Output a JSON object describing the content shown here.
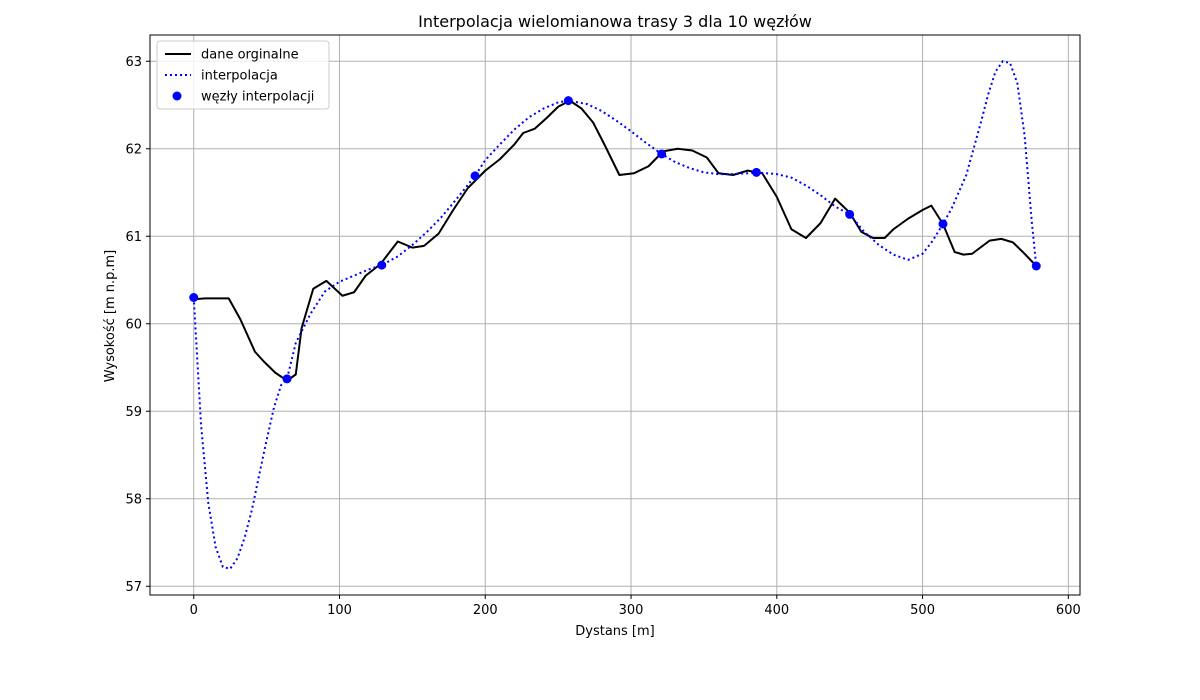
{
  "chart_data": {
    "type": "line",
    "title": "Interpolacja wielomianowa trasy 3 dla 10 węzłów",
    "xlabel": "Dystans [m]",
    "ylabel": "Wysokość [m n.p.m]",
    "xlim": [
      -30,
      608
    ],
    "ylim": [
      56.9,
      63.3
    ],
    "xticks": [
      0,
      100,
      200,
      300,
      400,
      500,
      600
    ],
    "yticks": [
      57,
      58,
      59,
      60,
      61,
      62,
      63
    ],
    "grid": true,
    "legend_position": "top-left",
    "legend": [
      "dane orginalne",
      "interpolacja",
      "węzły interpolacji"
    ],
    "colors": {
      "original": "#000000",
      "interpolation": "#0000ff",
      "nodes": "#0000ff",
      "grid": "#b0b0b0"
    },
    "series": [
      {
        "name": "dane orginalne",
        "style": "solid",
        "x": [
          0,
          8,
          16,
          24,
          32,
          42,
          48,
          56,
          64,
          70,
          74,
          82,
          91,
          102,
          110,
          118,
          128,
          140,
          150,
          158,
          168,
          178,
          188,
          200,
          210,
          220,
          226,
          234,
          242,
          250,
          258,
          266,
          274,
          282,
          292,
          302,
          312,
          322,
          332,
          342,
          352,
          360,
          370,
          380,
          390,
          400,
          410,
          420,
          430,
          440,
          450,
          458,
          466,
          474,
          480,
          490,
          500,
          506,
          514,
          522,
          528,
          534,
          538,
          546,
          554,
          562,
          570,
          578
        ],
        "y": [
          60.28,
          60.29,
          60.29,
          60.29,
          60.05,
          59.68,
          59.57,
          59.44,
          59.35,
          59.42,
          59.95,
          60.4,
          60.49,
          60.32,
          60.36,
          60.55,
          60.68,
          60.94,
          60.87,
          60.89,
          61.03,
          61.3,
          61.55,
          61.75,
          61.88,
          62.05,
          62.18,
          62.23,
          62.35,
          62.48,
          62.55,
          62.46,
          62.3,
          62.04,
          61.7,
          61.72,
          61.8,
          61.97,
          62.0,
          61.98,
          61.9,
          61.72,
          61.7,
          61.75,
          61.72,
          61.45,
          61.08,
          60.98,
          61.15,
          61.43,
          61.27,
          61.05,
          60.98,
          60.98,
          61.08,
          61.2,
          61.3,
          61.35,
          61.14,
          60.82,
          60.79,
          60.8,
          60.85,
          60.95,
          60.97,
          60.93,
          60.8,
          60.66
        ]
      },
      {
        "name": "interpolacja",
        "style": "dotted",
        "x": [
          0,
          5,
          10,
          15,
          20,
          25,
          30,
          35,
          40,
          45,
          50,
          55,
          60,
          64,
          70,
          80,
          90,
          100,
          110,
          120,
          129,
          140,
          150,
          160,
          170,
          180,
          193,
          200,
          210,
          220,
          230,
          240,
          250,
          257,
          270,
          280,
          290,
          300,
          310,
          321,
          330,
          340,
          350,
          360,
          370,
          380,
          386,
          400,
          410,
          420,
          430,
          440,
          450,
          460,
          470,
          480,
          490,
          500,
          507,
          514,
          520,
          530,
          540,
          545,
          550,
          555,
          560,
          565,
          570,
          575,
          578
        ],
        "y": [
          60.3,
          58.85,
          57.95,
          57.45,
          57.22,
          57.2,
          57.32,
          57.56,
          57.88,
          58.28,
          58.67,
          59.04,
          59.3,
          59.37,
          59.78,
          60.11,
          60.37,
          60.48,
          60.55,
          60.62,
          60.67,
          60.77,
          60.9,
          61.05,
          61.22,
          61.42,
          61.69,
          61.87,
          62.05,
          62.22,
          62.36,
          62.46,
          62.53,
          62.55,
          62.51,
          62.43,
          62.32,
          62.2,
          62.07,
          61.94,
          61.85,
          61.78,
          61.73,
          61.71,
          61.71,
          61.72,
          61.73,
          61.71,
          61.67,
          61.58,
          61.47,
          61.34,
          61.25,
          61.05,
          60.9,
          60.79,
          60.73,
          60.8,
          60.95,
          61.14,
          61.32,
          61.7,
          62.3,
          62.62,
          62.88,
          63.0,
          62.98,
          62.75,
          62.15,
          61.15,
          60.66
        ]
      },
      {
        "name": "węzły interpolacji",
        "style": "markers",
        "x": [
          0,
          64,
          129,
          193,
          257,
          321,
          386,
          450,
          514,
          578
        ],
        "y": [
          60.3,
          59.37,
          60.67,
          61.69,
          62.55,
          61.94,
          61.73,
          61.25,
          61.14,
          60.66
        ]
      }
    ]
  }
}
